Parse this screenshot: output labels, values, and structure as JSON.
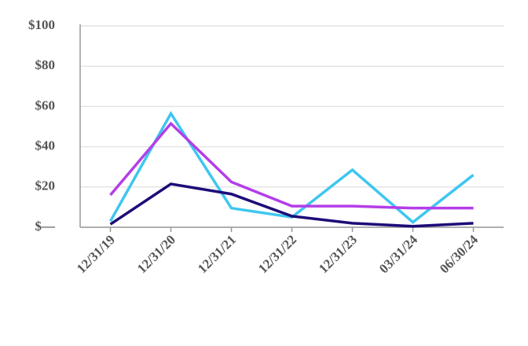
{
  "chart_data": {
    "type": "line",
    "categories": [
      "12/31/19",
      "12/31/20",
      "12/31/21",
      "12/31/22",
      "12/31/23",
      "03/31/24",
      "06/30/24"
    ],
    "series": [
      {
        "color": "#3ec6f0",
        "values": [
          3,
          56.5,
          9.5,
          5,
          28.5,
          2.5,
          26
        ]
      },
      {
        "color": "#b43ee8",
        "values": [
          16,
          51.5,
          22.5,
          10.5,
          10.5,
          9.5,
          9.5
        ]
      },
      {
        "color": "#1c0c78",
        "values": [
          1.5,
          21.5,
          16.5,
          5.5,
          2,
          0.5,
          2
        ]
      }
    ],
    "ylim": [
      0,
      100
    ],
    "yticks": [
      {
        "value": 0,
        "label": "$—"
      },
      {
        "value": 20,
        "label": "$20"
      },
      {
        "value": 40,
        "label": "$40"
      },
      {
        "value": 60,
        "label": "$60"
      },
      {
        "value": 80,
        "label": "$80"
      },
      {
        "value": 100,
        "label": "$100"
      }
    ],
    "grid": true
  }
}
